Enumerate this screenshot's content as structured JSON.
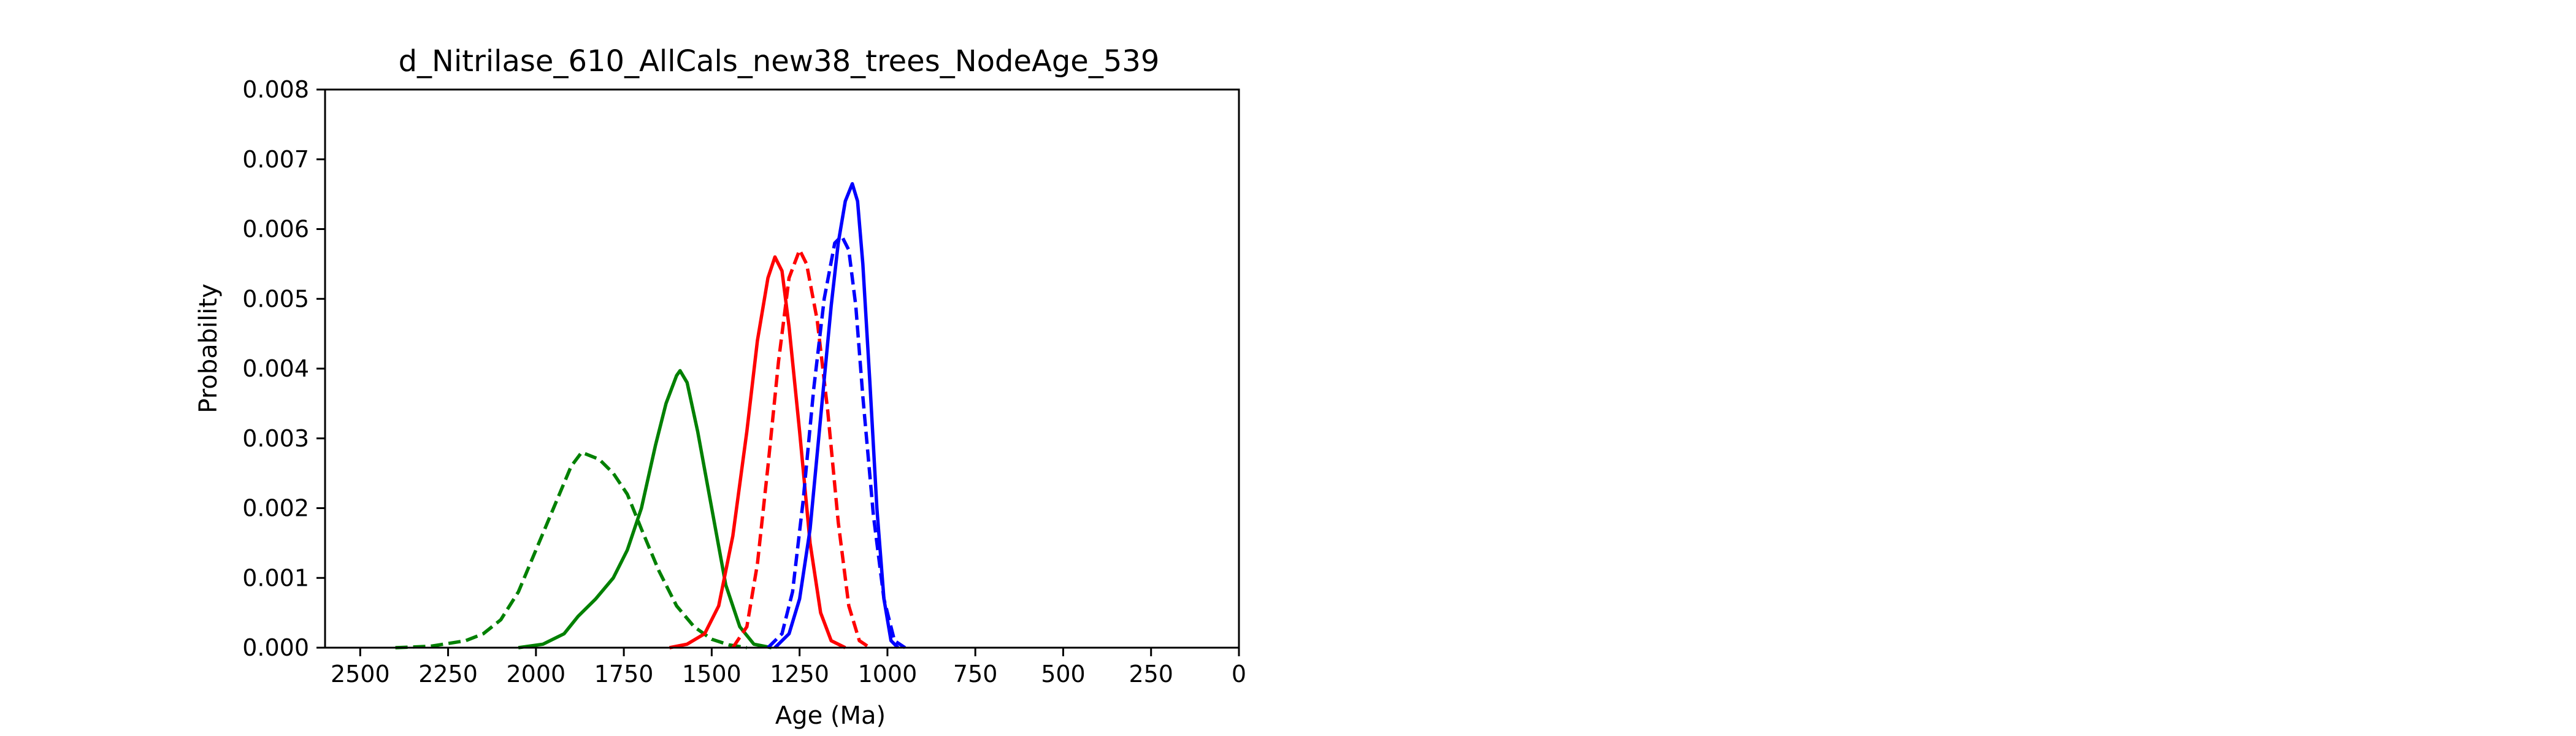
{
  "chart_data": {
    "type": "line",
    "title": "d_Nitrilase_610_AllCals_new38_trees_NodeAge_539",
    "xlabel": "Age (Ma)",
    "ylabel": "Probability",
    "xlim": [
      2600,
      0
    ],
    "ylim": [
      0,
      0.008
    ],
    "x_reversed": true,
    "grid": false,
    "legend": "none",
    "x_ticks": [
      2500,
      2250,
      2000,
      1750,
      1500,
      1250,
      1000,
      750,
      500,
      250,
      0
    ],
    "x_tick_labels": [
      "2500",
      "2250",
      "2000",
      "1750",
      "1500",
      "1250",
      "1000",
      "750",
      "500",
      "250",
      "0"
    ],
    "y_ticks": [
      0,
      0.001,
      0.002,
      0.003,
      0.004,
      0.005,
      0.006,
      0.007,
      0.008
    ],
    "y_tick_labels": [
      "0.000",
      "0.001",
      "0.002",
      "0.003",
      "0.004",
      "0.005",
      "0.006",
      "0.007",
      "0.008"
    ],
    "series": [
      {
        "color": "#008000",
        "linestyle": "dashed",
        "points": [
          [
            2400,
            0
          ],
          [
            2300,
            2e-05
          ],
          [
            2200,
            0.0001
          ],
          [
            2150,
            0.0002
          ],
          [
            2100,
            0.0004
          ],
          [
            2050,
            0.0008
          ],
          [
            2000,
            0.0014
          ],
          [
            1950,
            0.002
          ],
          [
            1900,
            0.0026
          ],
          [
            1870,
            0.0028
          ],
          [
            1820,
            0.0027
          ],
          [
            1780,
            0.0025
          ],
          [
            1740,
            0.0022
          ],
          [
            1700,
            0.0017
          ],
          [
            1650,
            0.0011
          ],
          [
            1600,
            0.0006
          ],
          [
            1550,
            0.0003
          ],
          [
            1500,
            0.00012
          ],
          [
            1450,
            4e-05
          ],
          [
            1400,
            0
          ]
        ]
      },
      {
        "color": "#008000",
        "linestyle": "solid",
        "points": [
          [
            2050,
            0
          ],
          [
            1980,
            5e-05
          ],
          [
            1920,
            0.0002
          ],
          [
            1880,
            0.00045
          ],
          [
            1830,
            0.0007
          ],
          [
            1780,
            0.001
          ],
          [
            1740,
            0.0014
          ],
          [
            1700,
            0.002
          ],
          [
            1660,
            0.0029
          ],
          [
            1630,
            0.0035
          ],
          [
            1600,
            0.0039
          ],
          [
            1590,
            0.00397
          ],
          [
            1570,
            0.0038
          ],
          [
            1540,
            0.0031
          ],
          [
            1500,
            0.002
          ],
          [
            1460,
            0.0009
          ],
          [
            1420,
            0.0003
          ],
          [
            1380,
            5e-05
          ],
          [
            1330,
            0
          ]
        ]
      },
      {
        "color": "#ff0000",
        "linestyle": "solid",
        "points": [
          [
            1620,
            0
          ],
          [
            1570,
            5e-05
          ],
          [
            1520,
            0.0002
          ],
          [
            1480,
            0.0006
          ],
          [
            1440,
            0.0016
          ],
          [
            1400,
            0.0031
          ],
          [
            1370,
            0.0044
          ],
          [
            1340,
            0.0053
          ],
          [
            1320,
            0.0056
          ],
          [
            1300,
            0.0054
          ],
          [
            1280,
            0.0046
          ],
          [
            1250,
            0.0031
          ],
          [
            1220,
            0.0015
          ],
          [
            1190,
            0.0005
          ],
          [
            1160,
            0.0001
          ],
          [
            1120,
            0
          ]
        ]
      },
      {
        "color": "#ff0000",
        "linestyle": "dashed",
        "points": [
          [
            1440,
            0
          ],
          [
            1400,
            0.0003
          ],
          [
            1370,
            0.0012
          ],
          [
            1340,
            0.0026
          ],
          [
            1310,
            0.0041
          ],
          [
            1280,
            0.0053
          ],
          [
            1250,
            0.0057
          ],
          [
            1230,
            0.0055
          ],
          [
            1200,
            0.0047
          ],
          [
            1170,
            0.0034
          ],
          [
            1140,
            0.0018
          ],
          [
            1110,
            0.0006
          ],
          [
            1080,
            0.0001
          ],
          [
            1050,
            0
          ]
        ]
      },
      {
        "color": "#0000ff",
        "linestyle": "dashed",
        "points": [
          [
            1340,
            0
          ],
          [
            1300,
            0.0002
          ],
          [
            1270,
            0.0008
          ],
          [
            1240,
            0.0021
          ],
          [
            1210,
            0.0037
          ],
          [
            1180,
            0.005
          ],
          [
            1150,
            0.0058
          ],
          [
            1130,
            0.0059
          ],
          [
            1110,
            0.0057
          ],
          [
            1090,
            0.0049
          ],
          [
            1070,
            0.0036
          ],
          [
            1040,
            0.0019
          ],
          [
            1010,
            0.0007
          ],
          [
            980,
            0.0001
          ],
          [
            950,
            0
          ]
        ]
      },
      {
        "color": "#0000ff",
        "linestyle": "solid",
        "points": [
          [
            1320,
            0
          ],
          [
            1280,
            0.0002
          ],
          [
            1250,
            0.0007
          ],
          [
            1220,
            0.0017
          ],
          [
            1190,
            0.0033
          ],
          [
            1160,
            0.0049
          ],
          [
            1140,
            0.0058
          ],
          [
            1120,
            0.0064
          ],
          [
            1100,
            0.00665
          ],
          [
            1085,
            0.0064
          ],
          [
            1070,
            0.0055
          ],
          [
            1050,
            0.0038
          ],
          [
            1030,
            0.002
          ],
          [
            1010,
            0.0007
          ],
          [
            990,
            0.0001
          ],
          [
            970,
            0
          ]
        ]
      }
    ]
  }
}
